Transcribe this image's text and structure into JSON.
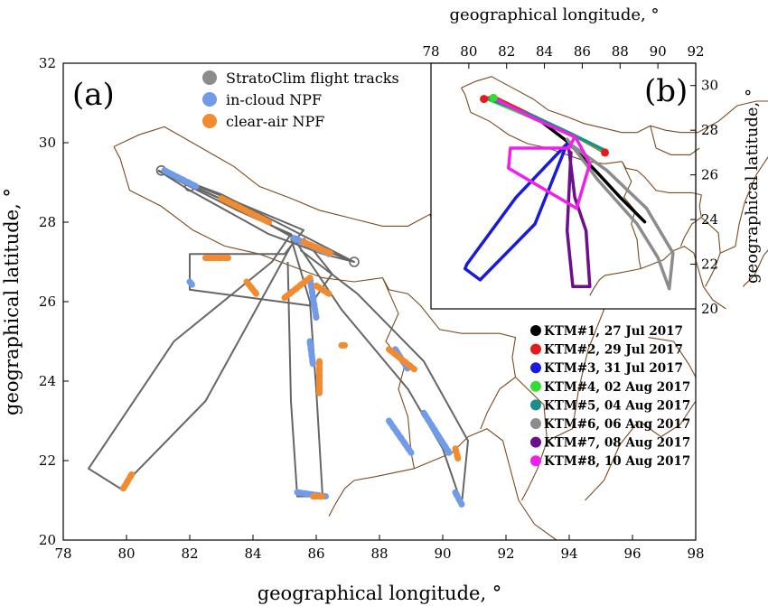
{
  "chart_data": [
    {
      "panel": "(a)",
      "type": "line",
      "xlabel": "geographical longitude, °",
      "ylabel": "geographical latitude, °",
      "xlim": [
        78,
        98
      ],
      "ylim": [
        20,
        32
      ],
      "xticks": [
        "78",
        "80",
        "82",
        "84",
        "86",
        "88",
        "90",
        "92",
        "94",
        "96",
        "98"
      ],
      "yticks": [
        "20",
        "22",
        "24",
        "26",
        "28",
        "30",
        "32"
      ],
      "legend_position": "top-center",
      "legend": [
        {
          "label": "StratoClim flight tracks",
          "color": "#8c8c8c"
        },
        {
          "label": "in-cloud NPF",
          "color": "#6f9be8"
        },
        {
          "label": "clear-air NPF",
          "color": "#f28a30"
        }
      ],
      "tracks": [
        {
          "name": "KTM#1",
          "points": [
            [
              81.0,
              29.3
            ],
            [
              83.5,
              28.4
            ],
            [
              85.3,
              27.6
            ],
            [
              87.2,
              27.0
            ]
          ]
        },
        {
          "name": "KTM#2",
          "points": [
            [
              81.0,
              29.3
            ],
            [
              83.0,
              28.7
            ],
            [
              85.0,
              27.9
            ],
            [
              87.2,
              27.0
            ],
            [
              86.2,
              27.2
            ],
            [
              84.5,
              27.7
            ],
            [
              82.0,
              28.8
            ],
            [
              81.0,
              29.3
            ]
          ]
        },
        {
          "name": "KTM#3",
          "points": [
            [
              81.0,
              29.3
            ],
            [
              83.5,
              28.3
            ],
            [
              85.2,
              27.7
            ],
            [
              84.6,
              27.0
            ],
            [
              81.5,
              25.0
            ],
            [
              78.8,
              21.8
            ],
            [
              79.8,
              21.3
            ],
            [
              82.5,
              23.5
            ],
            [
              85.2,
              27.4
            ]
          ]
        },
        {
          "name": "KTM#4",
          "points": [
            [
              81.0,
              29.3
            ],
            [
              83.5,
              28.4
            ],
            [
              85.3,
              27.6
            ],
            [
              87.2,
              27.0
            ]
          ]
        },
        {
          "name": "KTM#5",
          "points": [
            [
              81.0,
              29.3
            ],
            [
              83.5,
              28.4
            ],
            [
              85.3,
              27.6
            ],
            [
              87.2,
              27.0
            ]
          ]
        },
        {
          "name": "KTM#6",
          "points": [
            [
              85.2,
              27.7
            ],
            [
              86.8,
              25.8
            ],
            [
              88.9,
              23.8
            ],
            [
              90.0,
              22.3
            ],
            [
              90.6,
              20.9
            ],
            [
              90.8,
              22.5
            ],
            [
              89.4,
              24.5
            ],
            [
              87.3,
              26.2
            ],
            [
              85.5,
              27.3
            ]
          ]
        },
        {
          "name": "KTM#7",
          "points": [
            [
              85.2,
              27.6
            ],
            [
              85.8,
              26.0
            ],
            [
              86.0,
              23.8
            ],
            [
              86.2,
              21.1
            ],
            [
              85.4,
              21.1
            ],
            [
              85.2,
              23.5
            ],
            [
              85.1,
              27.0
            ]
          ]
        },
        {
          "name": "KTM#8",
          "points": [
            [
              81.0,
              29.3
            ],
            [
              83.5,
              28.5
            ],
            [
              85.6,
              27.8
            ],
            [
              85.0,
              27.2
            ],
            [
              82.0,
              27.2
            ],
            [
              82.0,
              26.3
            ],
            [
              85.8,
              25.9
            ],
            [
              86.5,
              26.7
            ],
            [
              85.6,
              27.6
            ]
          ]
        }
      ],
      "in_cloud_npf": [
        {
          "points": [
            [
              81.2,
              29.3
            ],
            [
              82.2,
              28.9
            ]
          ]
        },
        {
          "points": [
            [
              85.3,
              27.6
            ],
            [
              86.4,
              27.2
            ]
          ]
        },
        {
          "points": [
            [
              85.8,
              26.6
            ],
            [
              86.0,
              25.6
            ]
          ]
        },
        {
          "points": [
            [
              85.8,
              25.0
            ],
            [
              85.9,
              24.4
            ]
          ]
        },
        {
          "points": [
            [
              85.4,
              21.2
            ],
            [
              86.3,
              21.1
            ]
          ]
        },
        {
          "points": [
            [
              88.5,
              24.8
            ],
            [
              88.9,
              24.3
            ]
          ]
        },
        {
          "points": [
            [
              89.4,
              23.2
            ],
            [
              90.2,
              22.2
            ]
          ]
        },
        {
          "points": [
            [
              88.3,
              23.0
            ],
            [
              89.0,
              22.2
            ]
          ]
        },
        {
          "points": [
            [
              90.4,
              21.2
            ],
            [
              90.6,
              20.9
            ]
          ]
        },
        {
          "points": [
            [
              82.0,
              26.5
            ],
            [
              82.1,
              26.4
            ]
          ]
        }
      ],
      "clear_air_npf": [
        {
          "points": [
            [
              83.0,
              28.6
            ],
            [
              84.5,
              28.0
            ]
          ]
        },
        {
          "points": [
            [
              85.6,
              27.5
            ],
            [
              86.5,
              27.2
            ]
          ]
        },
        {
          "points": [
            [
              82.5,
              27.1
            ],
            [
              83.3,
              27.1
            ]
          ]
        },
        {
          "points": [
            [
              83.8,
              26.5
            ],
            [
              84.1,
              26.2
            ]
          ]
        },
        {
          "points": [
            [
              85.0,
              26.1
            ],
            [
              85.8,
              26.6
            ]
          ]
        },
        {
          "points": [
            [
              86.0,
              26.4
            ],
            [
              86.4,
              26.2
            ]
          ]
        },
        {
          "points": [
            [
              86.1,
              24.5
            ],
            [
              86.1,
              23.7
            ]
          ]
        },
        {
          "points": [
            [
              85.9,
              21.1
            ],
            [
              86.2,
              21.1
            ]
          ]
        },
        {
          "points": [
            [
              79.9,
              21.3
            ],
            [
              80.2,
              21.7
            ]
          ]
        },
        {
          "points": [
            [
              86.8,
              24.9
            ],
            [
              86.9,
              24.9
            ]
          ]
        },
        {
          "points": [
            [
              88.3,
              24.8
            ],
            [
              89.1,
              24.3
            ]
          ]
        },
        {
          "points": [
            [
              90.4,
              22.3
            ],
            [
              90.5,
              22.0
            ]
          ]
        }
      ]
    },
    {
      "panel": "(b)",
      "type": "line",
      "xlabel": "geographical longitude, °",
      "ylabel": "geographical latitude, °",
      "xlim": [
        78,
        92
      ],
      "ylim": [
        20,
        31
      ],
      "xticks": [
        "78",
        "80",
        "82",
        "84",
        "86",
        "88",
        "90",
        "92"
      ],
      "yticks": [
        "20",
        "22",
        "24",
        "26",
        "28",
        "30"
      ],
      "legend_position": "below",
      "series": [
        {
          "name": "KTM#1, 27 Jul 2017",
          "color": "#000000",
          "points": [
            [
              81.0,
              29.4
            ],
            [
              83.5,
              28.6
            ],
            [
              85.2,
              27.5
            ],
            [
              86.8,
              26.1
            ],
            [
              88.0,
              25.0
            ],
            [
              89.3,
              23.9
            ]
          ]
        },
        {
          "name": "KTM#2, 29 Jul 2017",
          "color": "#e41a1c",
          "points": [
            [
              80.8,
              29.4
            ],
            [
              81.3,
              29.5
            ],
            [
              83.5,
              28.6
            ],
            [
              85.5,
              27.8
            ],
            [
              87.2,
              27.0
            ]
          ]
        },
        {
          "name": "KTM#3, 31 Jul 2017",
          "color": "#1a1adc",
          "points": [
            [
              85.2,
              27.4
            ],
            [
              82.5,
              25.0
            ],
            [
              79.9,
              22.0
            ],
            [
              79.8,
              21.8
            ],
            [
              80.6,
              21.3
            ],
            [
              83.5,
              23.8
            ],
            [
              85.2,
              27.4
            ]
          ]
        },
        {
          "name": "KTM#4, 02 Aug 2017",
          "color": "#33dd33",
          "points": [
            [
              81.0,
              29.4
            ],
            [
              83.5,
              28.5
            ],
            [
              85.5,
              27.8
            ],
            [
              87.3,
              27.0
            ]
          ]
        },
        {
          "name": "KTM#5, 04 Aug 2017",
          "color": "#1a8f8a",
          "points": [
            [
              81.1,
              29.4
            ],
            [
              83.5,
              28.6
            ],
            [
              85.5,
              27.8
            ],
            [
              87.2,
              27.1
            ]
          ]
        },
        {
          "name": "KTM#6, 06 Aug 2017",
          "color": "#8c8c8c",
          "points": [
            [
              85.2,
              27.6
            ],
            [
              86.8,
              25.8
            ],
            [
              88.9,
              23.8
            ],
            [
              90.0,
              22.3
            ],
            [
              90.6,
              20.9
            ],
            [
              90.8,
              22.5
            ],
            [
              89.4,
              24.5
            ],
            [
              87.3,
              26.2
            ],
            [
              85.5,
              27.3
            ]
          ]
        },
        {
          "name": "KTM#7, 08 Aug 2017",
          "color": "#6a0f8e",
          "points": [
            [
              85.3,
              27.1
            ],
            [
              85.6,
              25.0
            ],
            [
              86.2,
              23.5
            ],
            [
              86.4,
              21.0
            ],
            [
              85.5,
              21.0
            ],
            [
              85.2,
              23.5
            ],
            [
              85.4,
              27.0
            ]
          ]
        },
        {
          "name": "KTM#8, 10 Aug 2017",
          "color": "#f020e8",
          "points": [
            [
              81.4,
              29.4
            ],
            [
              83.5,
              28.5
            ],
            [
              85.6,
              27.7
            ],
            [
              85.3,
              27.2
            ],
            [
              82.2,
              27.2
            ],
            [
              82.1,
              26.3
            ],
            [
              85.7,
              24.5
            ],
            [
              86.4,
              26.5
            ],
            [
              85.7,
              27.6
            ]
          ]
        }
      ]
    }
  ]
}
